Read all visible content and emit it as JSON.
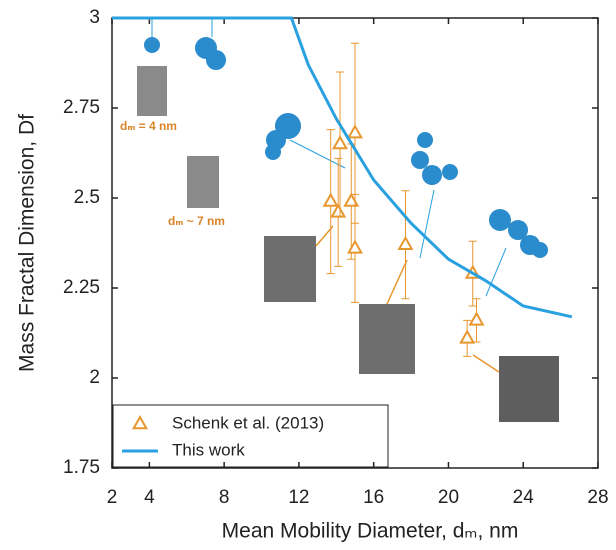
{
  "chart_data": {
    "type": "scatter",
    "x_label": "Mean Mobility Diameter, dₘ, nm",
    "y_label": "Mass Fractal Dimension, Df",
    "annotations": [
      "dₘ = 4 nm",
      "dₘ ~ 7 nm"
    ],
    "xlim": [
      2,
      28
    ],
    "xticks": [
      2,
      4,
      8,
      12,
      16,
      20,
      24,
      28
    ],
    "ylim": [
      1.75,
      3
    ],
    "yticks": [
      1.75,
      2,
      2.25,
      2.5,
      2.75,
      3
    ],
    "legend": "lower left",
    "series": [
      {
        "name": "Schenk et al. (2013)",
        "color": "#e8962e",
        "type": "scatter",
        "x": [
          13.7,
          14.1,
          14.2,
          14.8,
          15.0,
          15.0,
          17.7,
          21.3,
          21.5,
          21.0
        ],
        "values": [
          2.49,
          2.46,
          2.65,
          2.49,
          2.68,
          2.36,
          2.37,
          2.29,
          2.16,
          2.11
        ],
        "errors": [
          0.2,
          0.15,
          0.2,
          0.16,
          0.25,
          0.15,
          0.15,
          0.09,
          0.06,
          0.05
        ]
      },
      {
        "name": "This work",
        "color": "#29a0e0",
        "type": "line",
        "x": [
          2,
          11.6,
          12.5,
          14,
          16,
          18,
          20,
          22,
          24,
          26.6
        ],
        "values": [
          3,
          3,
          2.87,
          2.72,
          2.55,
          2.43,
          2.33,
          2.27,
          2.2,
          2.17
        ]
      }
    ]
  }
}
